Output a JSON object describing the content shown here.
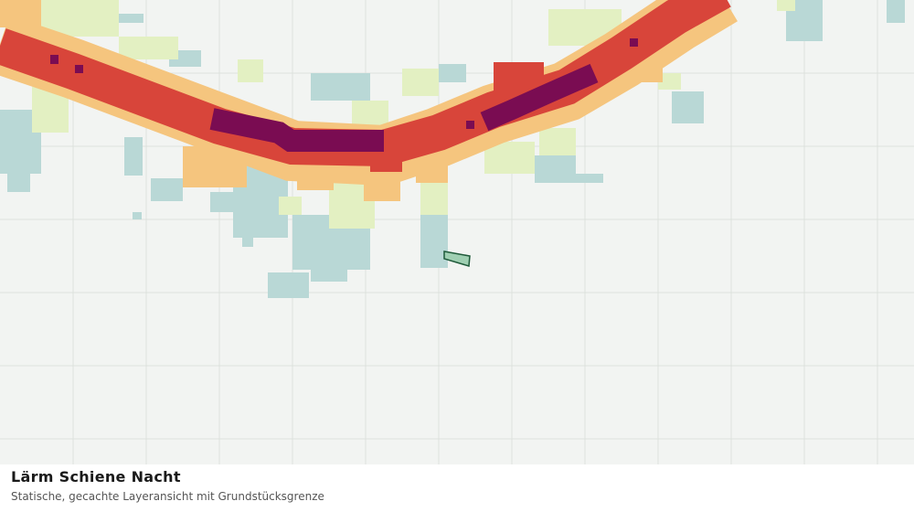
{
  "map": {
    "title": "Lärm Schiene Nacht",
    "subtitle": "Statische, gecachte Layeransicht mit Grundstücksgrenze"
  }
}
